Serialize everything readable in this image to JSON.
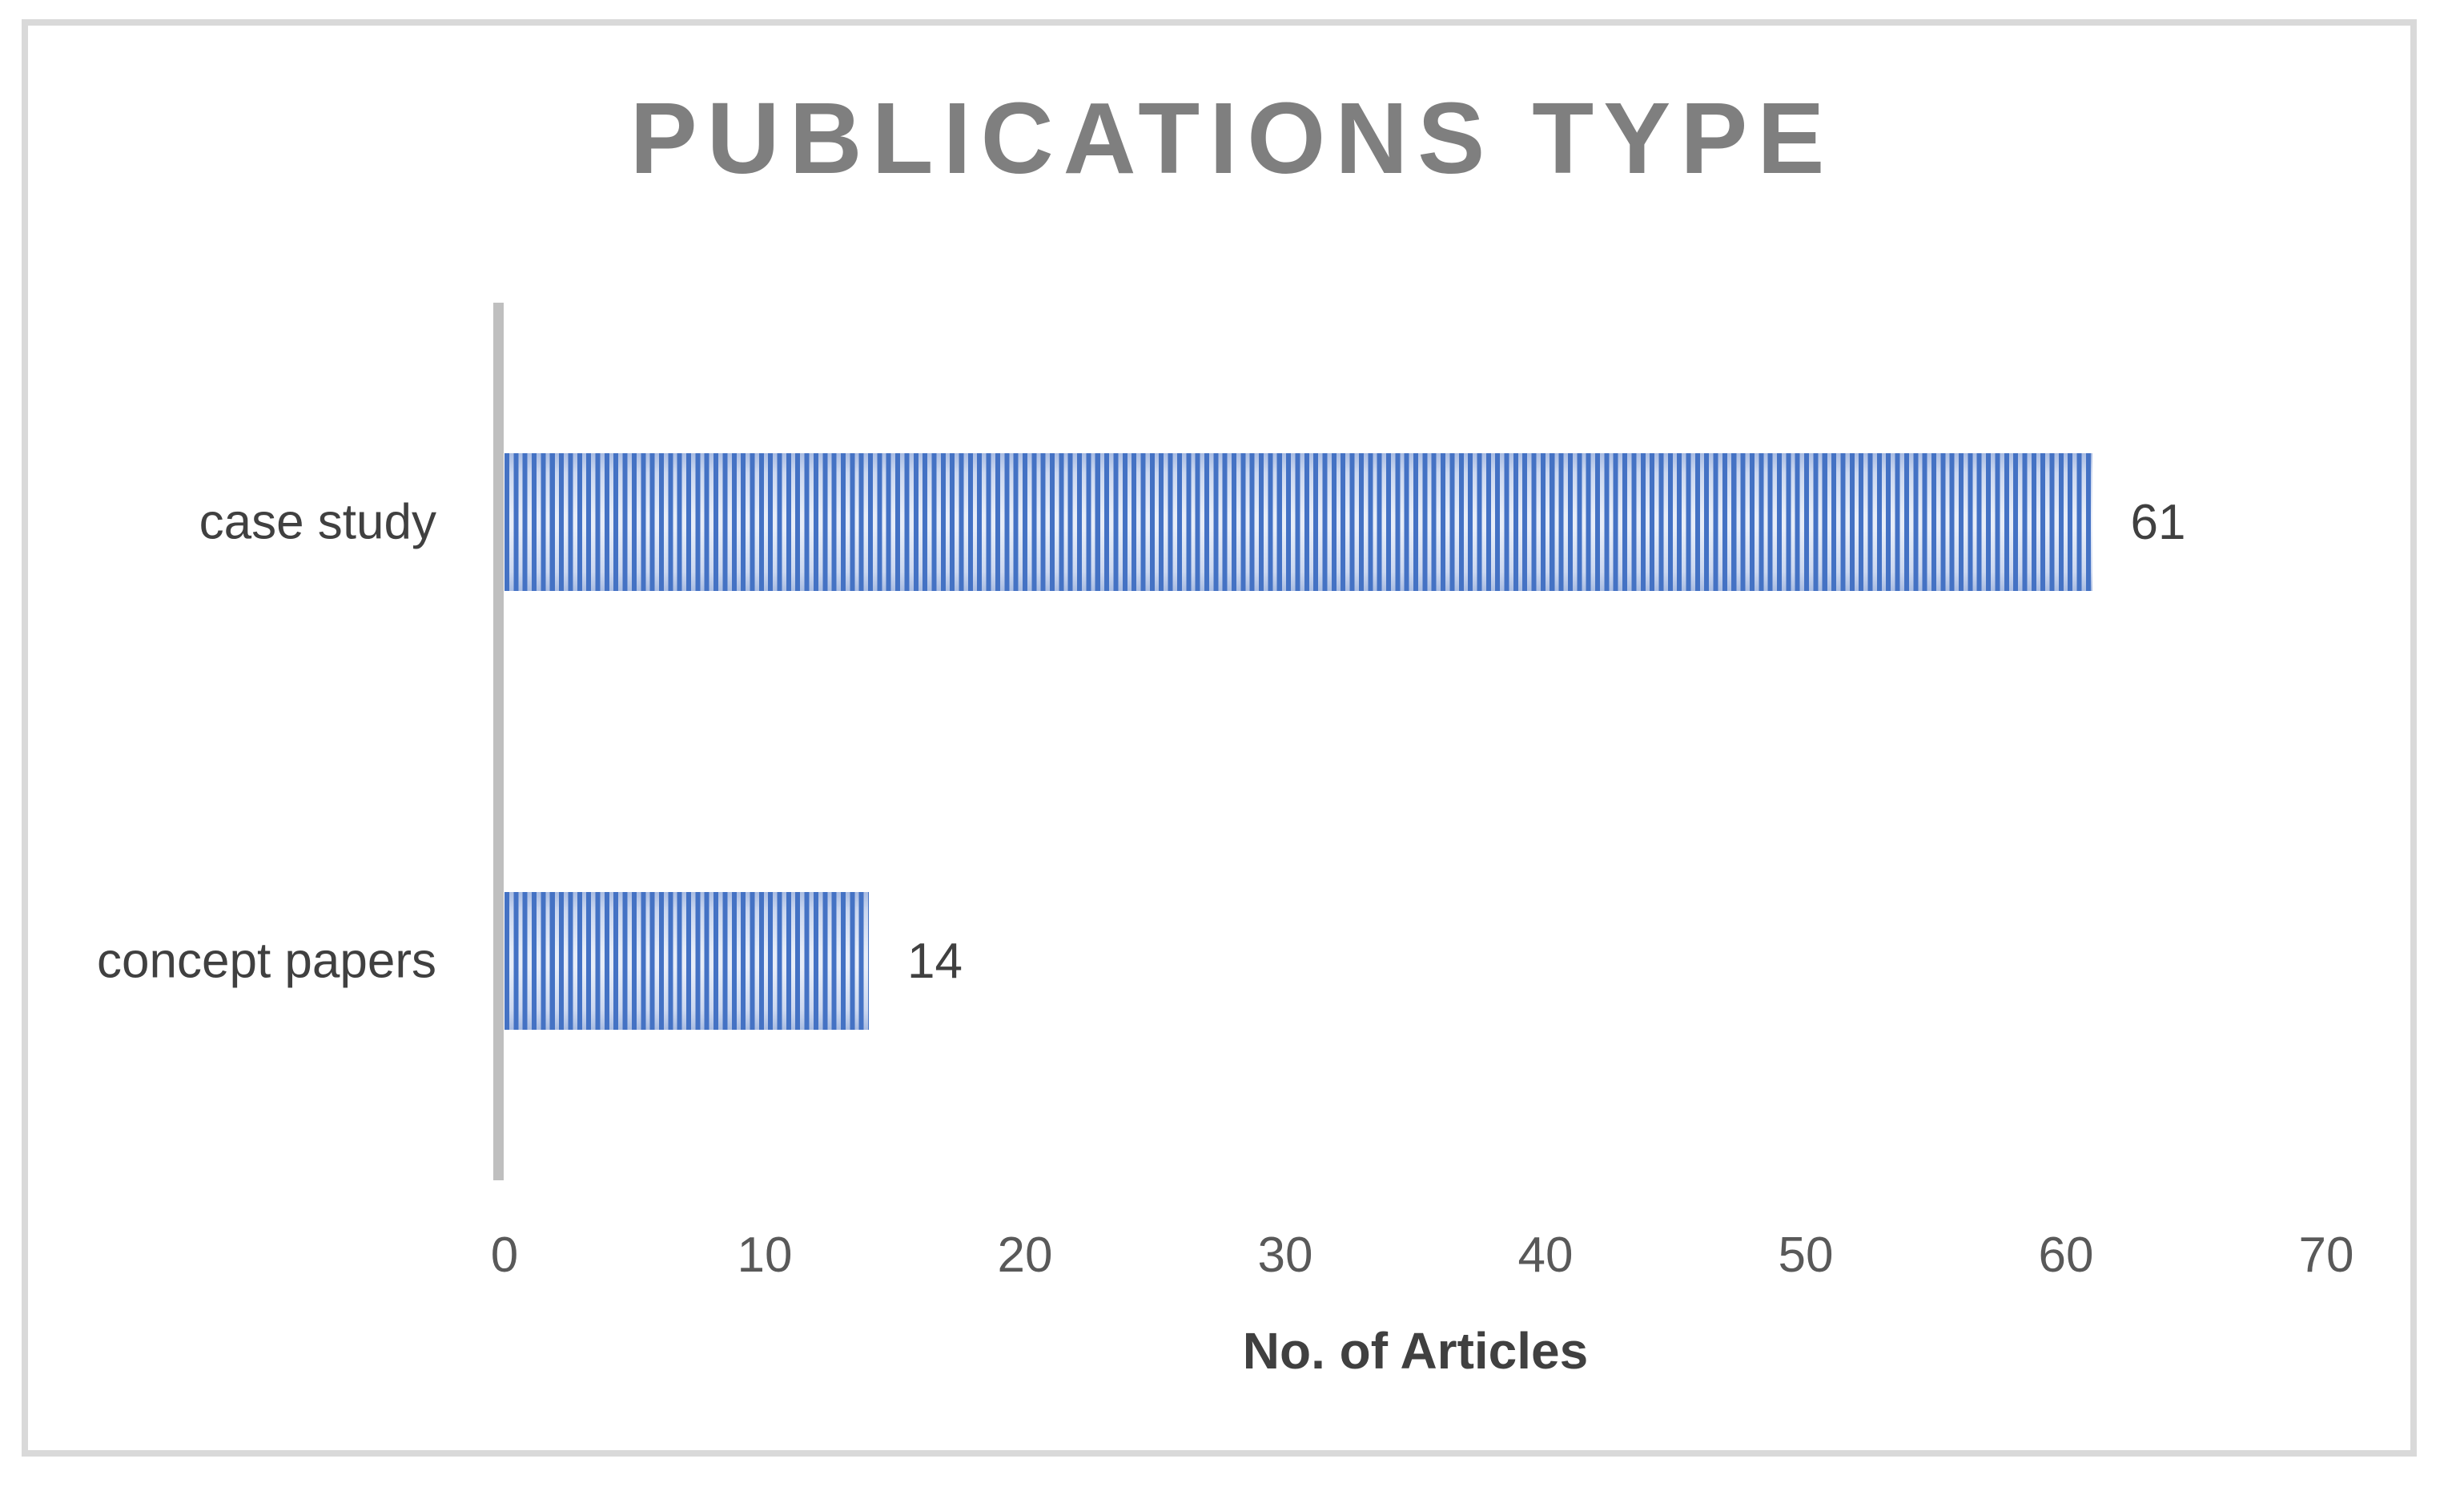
{
  "chart_data": {
    "type": "bar",
    "orientation": "horizontal",
    "title": "PUBLICATIONS TYPE",
    "categories": [
      "case study",
      "concept papers"
    ],
    "values": [
      61,
      14
    ],
    "xlabel": "No. of Articles",
    "ylabel": "",
    "xlim": [
      0,
      70
    ],
    "xticks": [
      0,
      10,
      20,
      30,
      40,
      50,
      60,
      70
    ],
    "grid": false,
    "legend": false,
    "bar_pattern": "vertical-stripes",
    "colors": {
      "bar_stripe": "#4472C4",
      "bar_gap_mid": "#e7edf8",
      "bar_gap_edge": "#a9bce2",
      "axis_line": "#bfbfbf",
      "title_text": "#7f7f7f",
      "label_text": "#404040",
      "tick_text": "#595959",
      "frame_border": "#d9d9d9"
    }
  }
}
